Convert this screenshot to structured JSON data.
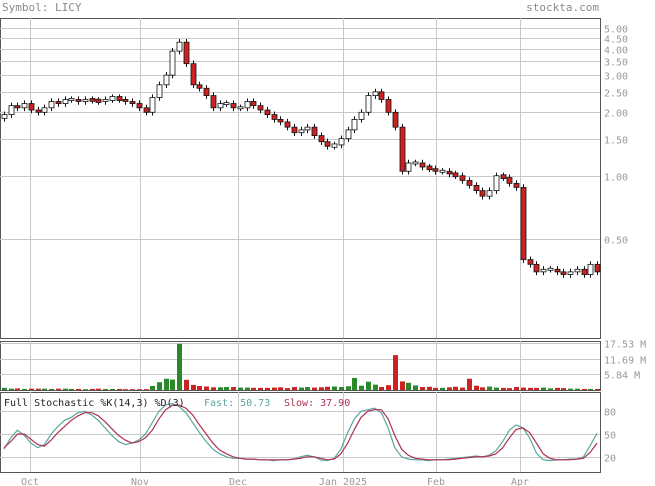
{
  "header": {
    "symbol_label": "Symbol: LICY",
    "brand": "stockta.com"
  },
  "stochastic": {
    "title": "Full Stochastic %K(14,3) %D(3)",
    "fast_label": "Fast: 50.73",
    "slow_label": "Slow: 37.90",
    "fast_color": "#5aa5a5",
    "slow_color": "#b03050"
  },
  "colors": {
    "up": "#ffffff",
    "down": "#cc2222",
    "up_volume": "#2a8a2a",
    "down_volume": "#cc2222",
    "grid": "#c8c8c8"
  },
  "chart_data": [
    {
      "type": "candlestick",
      "scale": "log",
      "ylim": [
        0.17,
        5.6
      ],
      "y_ticks": [
        "5.00",
        "4.50",
        "4.00",
        "3.50",
        "3.00",
        "2.50",
        "2.00",
        "1.50",
        "1.00",
        "0.50"
      ],
      "x_ticks": [
        "Oct",
        "Nov",
        "Dec",
        "Jan 2025",
        "Feb",
        "Apr"
      ],
      "grid": true,
      "close": [
        1.95,
        2.15,
        2.1,
        2.2,
        2.05,
        2.0,
        2.1,
        2.25,
        2.2,
        2.3,
        2.3,
        2.25,
        2.3,
        2.28,
        2.25,
        2.3,
        2.35,
        2.3,
        2.25,
        2.2,
        2.1,
        2.0,
        2.35,
        2.7,
        3.0,
        3.9,
        4.3,
        3.4,
        2.7,
        2.6,
        2.4,
        2.1,
        2.2,
        2.2,
        2.1,
        2.1,
        2.25,
        2.15,
        2.05,
        1.95,
        1.85,
        1.8,
        1.7,
        1.6,
        1.65,
        1.7,
        1.55,
        1.45,
        1.38,
        1.4,
        1.5,
        1.65,
        1.85,
        2.0,
        2.4,
        2.5,
        2.3,
        2.0,
        1.7,
        1.05,
        1.15,
        1.15,
        1.1,
        1.08,
        1.05,
        1.05,
        1.02,
        1.0,
        0.95,
        0.9,
        0.85,
        0.8,
        0.85,
        1.0,
        0.98,
        0.92,
        0.88,
        0.4,
        0.38,
        0.35,
        0.36,
        0.36,
        0.35,
        0.34,
        0.35,
        0.36,
        0.34,
        0.38,
        0.35
      ],
      "volume_axis_ticks": [
        "17.53 M",
        "11.69 M",
        "5.84 M"
      ],
      "volume_m": [
        0.8,
        0.5,
        0.6,
        0.4,
        0.5,
        0.5,
        0.5,
        0.4,
        0.5,
        0.5,
        0.4,
        0.4,
        0.3,
        0.4,
        0.5,
        0.4,
        0.4,
        0.4,
        0.3,
        0.3,
        0.3,
        0.3,
        1.5,
        2.9,
        4.2,
        3.9,
        17.2,
        3.8,
        1.9,
        1.5,
        1.3,
        1.0,
        1.0,
        1.1,
        1.1,
        0.9,
        0.9,
        0.8,
        0.8,
        0.8,
        0.9,
        1.0,
        0.7,
        1.1,
        0.9,
        1.1,
        0.9,
        1.0,
        1.2,
        1.3,
        1.1,
        1.4,
        4.5,
        1.6,
        3.1,
        2.0,
        1.1,
        1.8,
        13.0,
        3.2,
        2.7,
        1.7,
        1.1,
        1.2,
        0.8,
        0.8,
        1.0,
        1.2,
        0.9,
        4.2,
        1.6,
        1.0,
        1.3,
        0.9,
        0.8,
        0.7,
        1.1,
        0.9,
        0.8,
        0.8,
        0.9,
        0.6,
        0.8,
        0.7,
        0.5,
        0.5,
        0.4,
        0.4,
        0.4
      ],
      "volume_max_m": 17.53
    },
    {
      "type": "line",
      "title": "Full Stochastic %K(14,3) %D(3)",
      "ylim": [
        0,
        100
      ],
      "y_ticks": [
        "80",
        "50",
        "20"
      ],
      "series": [
        {
          "name": "Fast",
          "values": [
            30,
            45,
            55,
            48,
            38,
            32,
            36,
            50,
            60,
            68,
            72,
            78,
            80,
            75,
            68,
            58,
            48,
            40,
            36,
            38,
            42,
            50,
            65,
            80,
            88,
            90,
            86,
            78,
            65,
            52,
            40,
            30,
            24,
            20,
            18,
            18,
            17,
            17,
            16,
            16,
            15,
            16,
            16,
            17,
            20,
            22,
            20,
            16,
            15,
            18,
            30,
            52,
            70,
            80,
            82,
            84,
            78,
            58,
            32,
            20,
            17,
            16,
            16,
            15,
            16,
            16,
            17,
            18,
            19,
            20,
            21,
            20,
            22,
            28,
            40,
            55,
            62,
            58,
            45,
            25,
            16,
            15,
            16,
            16,
            17,
            17,
            20,
            35,
            51
          ]
        },
        {
          "name": "Slow",
          "values": [
            32,
            40,
            50,
            50,
            43,
            36,
            34,
            42,
            52,
            60,
            68,
            74,
            78,
            78,
            74,
            66,
            57,
            48,
            42,
            38,
            40,
            45,
            55,
            70,
            82,
            88,
            88,
            84,
            75,
            62,
            50,
            38,
            29,
            24,
            20,
            18,
            17,
            17,
            16,
            16,
            16,
            16,
            16,
            17,
            18,
            20,
            20,
            18,
            16,
            17,
            24,
            38,
            56,
            72,
            80,
            82,
            82,
            70,
            48,
            30,
            22,
            18,
            17,
            16,
            16,
            16,
            16,
            17,
            18,
            19,
            20,
            20,
            21,
            24,
            32,
            45,
            56,
            58,
            52,
            38,
            24,
            18,
            16,
            16,
            16,
            17,
            18,
            26,
            38
          ]
        }
      ]
    }
  ]
}
